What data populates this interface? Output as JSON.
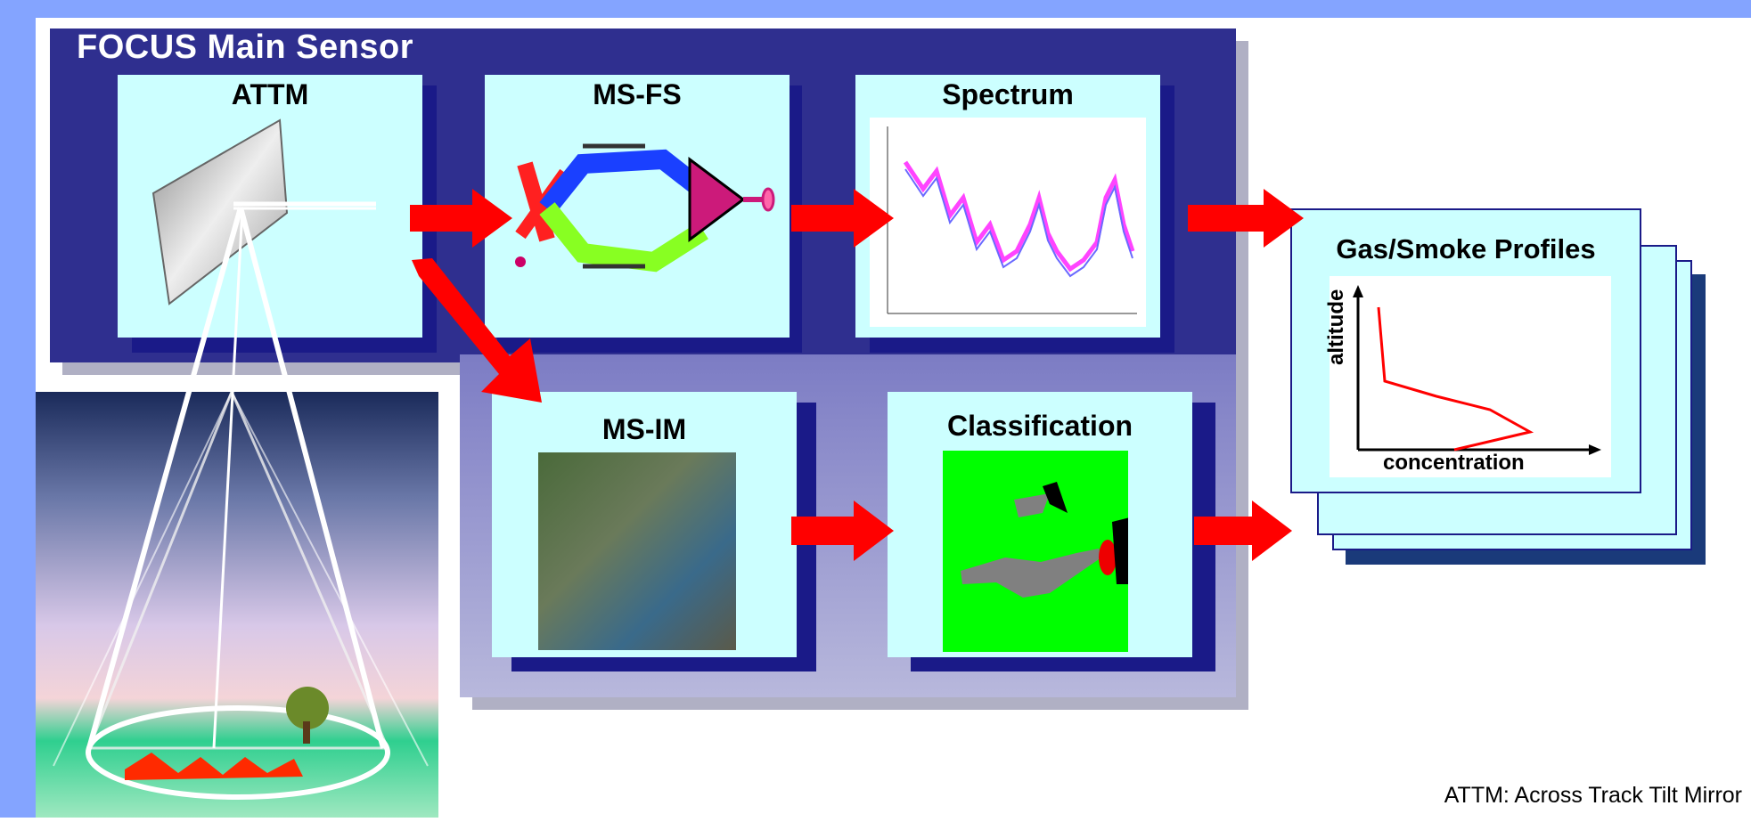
{
  "title": "FOCUS Main Sensor",
  "boxes": {
    "attm": "ATTM",
    "msfs": "MS-FS",
    "spectrum": "Spectrum",
    "msim": "MS-IM",
    "classification": "Classification",
    "profiles": "Gas/Smoke Profiles"
  },
  "profile_axes": {
    "y": "altitude",
    "x": "concentration"
  },
  "legend": "ATTM: Across Track Tilt Mirror",
  "colors": {
    "background_band": "#84a4ff",
    "main_panel": "#2f2f8f",
    "box_fill": "#ccffff",
    "arrow": "#ff0000",
    "class_green": "#00ff00"
  }
}
